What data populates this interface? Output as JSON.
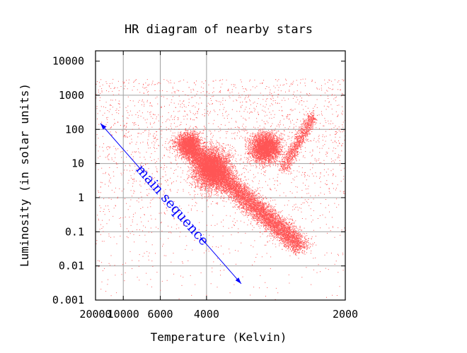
{
  "chart_data": {
    "type": "scatter",
    "title": "HR diagram of nearby stars",
    "xlabel": "Temperature (Kelvin)",
    "ylabel": "Luminosity (in solar units)",
    "x_scale": "reciprocal",
    "y_scale": "log",
    "xlim": [
      20000,
      2000
    ],
    "ylim": [
      0.001,
      20000
    ],
    "x_ticks": [
      {
        "value": 20000,
        "label": "20000"
      },
      {
        "value": 10000,
        "label": "10000"
      },
      {
        "value": 6000,
        "label": "6000"
      },
      {
        "value": 4000,
        "label": "4000"
      },
      {
        "value": 2000,
        "label": "2000"
      }
    ],
    "y_ticks": [
      {
        "value": 10000,
        "label": "10000"
      },
      {
        "value": 1000,
        "label": "1000"
      },
      {
        "value": 100,
        "label": "100"
      },
      {
        "value": 10,
        "label": "10"
      },
      {
        "value": 1,
        "label": "1"
      },
      {
        "value": 0.1,
        "label": "0.1"
      },
      {
        "value": 0.01,
        "label": "0.01"
      },
      {
        "value": 0.001,
        "label": "0.001"
      }
    ],
    "grid": true,
    "point_color": "#ff5555",
    "annotation": {
      "text": "main sequence",
      "color": "#0000ff",
      "arrow": {
        "from": {
          "x": 17000,
          "y": 150
        },
        "to": {
          "x": 3200,
          "y": 0.003
        }
      }
    },
    "series": [
      {
        "point_count_approx": 22000,
        "clusters": [
          {
            "region": "main-sequence-upper",
            "temp_range": [
              9000,
              5500
            ],
            "lum_range": [
              0.5,
              80
            ]
          },
          {
            "region": "main-sequence-lower",
            "temp_range": [
              5500,
              3300
            ],
            "lum_range": [
              0.02,
              1
            ]
          },
          {
            "region": "giant-clump",
            "temp_range": [
              5000,
              3800
            ],
            "lum_range": [
              3,
              80
            ]
          },
          {
            "region": "giant-branch",
            "temp_range": [
              3800,
              3000
            ],
            "lum_range": [
              5,
              300
            ]
          },
          {
            "region": "upper-left-sparse",
            "temp_range": [
              20000,
              8000
            ],
            "lum_range": [
              10,
              3000
            ]
          }
        ]
      }
    ]
  }
}
